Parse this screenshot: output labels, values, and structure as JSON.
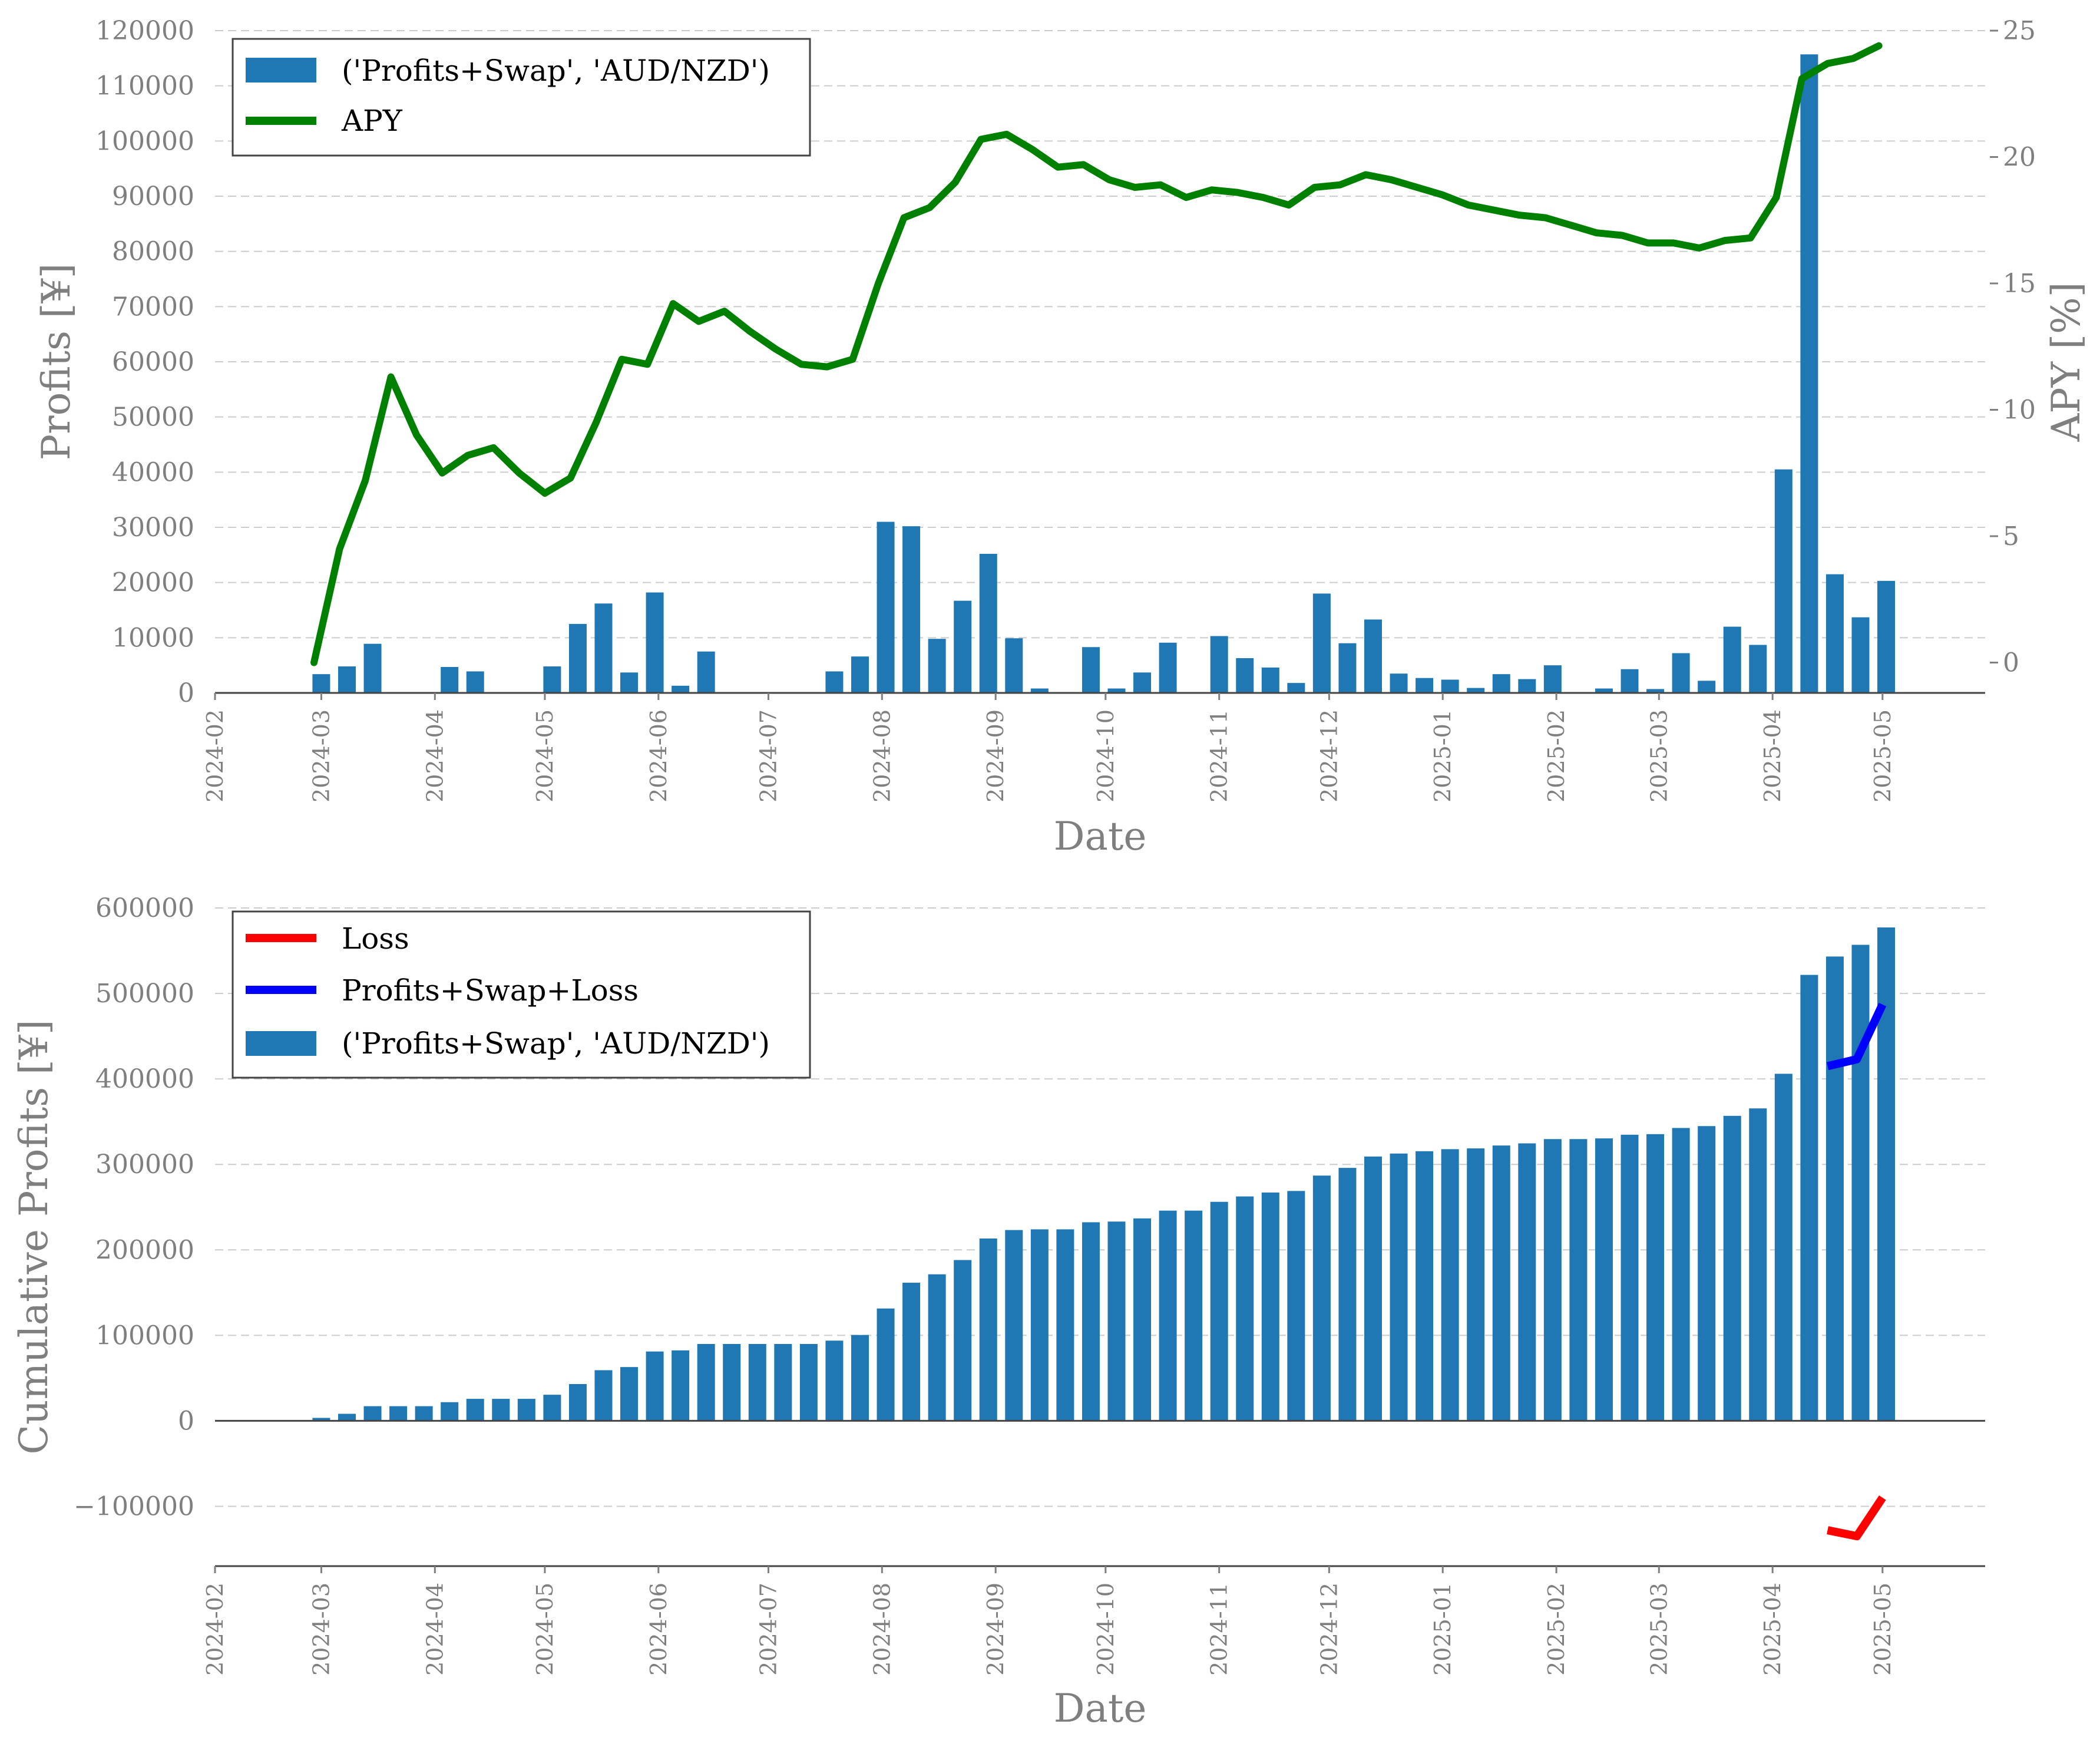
{
  "colors": {
    "bar": "#1f77b4",
    "apy": "#008000",
    "loss": "#ff0000",
    "psl": "#0000ff",
    "axis_text": "#7f7f7f"
  },
  "x_ticks": [
    "2024-02",
    "2024-03",
    "2024-04",
    "2024-05",
    "2024-06",
    "2024-07",
    "2024-08",
    "2024-09",
    "2024-10",
    "2024-11",
    "2024-12",
    "2025-01",
    "2025-02",
    "2025-03",
    "2025-04",
    "2025-05"
  ],
  "chart_data": [
    {
      "type": "bar",
      "xlabel": "Date",
      "ylabel": "Profits [¥]",
      "y2label": "APY [%]",
      "ylim": [
        0,
        120000
      ],
      "y2lim": [
        -1.2,
        25
      ],
      "yticks": [
        "0",
        "10000",
        "20000",
        "30000",
        "40000",
        "50000",
        "60000",
        "70000",
        "80000",
        "90000",
        "100000",
        "110000",
        "120000"
      ],
      "y2ticks": [
        "0",
        "5",
        "10",
        "15",
        "20",
        "25"
      ],
      "grid": true,
      "legend_position": "top-left",
      "legend": [
        "('Profits+Swap', 'AUD/NZD')",
        "APY"
      ],
      "series": [
        {
          "name": "('Profits+Swap', 'AUD/NZD')",
          "type": "bar",
          "x": [
            "2024-03-01",
            "2024-03-08",
            "2024-03-15",
            "2024-04-05",
            "2024-04-12",
            "2024-05-03",
            "2024-05-10",
            "2024-05-17",
            "2024-05-24",
            "2024-05-31",
            "2024-06-07",
            "2024-06-14",
            "2024-07-19",
            "2024-07-26",
            "2024-08-02",
            "2024-08-09",
            "2024-08-16",
            "2024-08-23",
            "2024-08-30",
            "2024-09-06",
            "2024-09-13",
            "2024-09-27",
            "2024-10-04",
            "2024-10-11",
            "2024-10-18",
            "2024-11-01",
            "2024-11-08",
            "2024-11-15",
            "2024-11-22",
            "2024-11-29",
            "2024-12-06",
            "2024-12-13",
            "2024-12-20",
            "2024-12-27",
            "2025-01-03",
            "2025-01-10",
            "2025-01-17",
            "2025-01-24",
            "2025-01-31",
            "2025-02-14",
            "2025-02-21",
            "2025-02-28",
            "2025-03-07",
            "2025-03-14",
            "2025-03-21",
            "2025-03-28",
            "2025-04-04",
            "2025-04-11",
            "2025-04-18",
            "2025-04-25",
            "2025-05-02"
          ],
          "values": [
            3400,
            4800,
            8900,
            4700,
            3900,
            4800,
            12500,
            16200,
            3700,
            18200,
            1300,
            7500,
            3900,
            6600,
            31000,
            30200,
            9800,
            16700,
            25200,
            9900,
            800,
            8300,
            800,
            3700,
            9100,
            10300,
            6300,
            4600,
            1800,
            18000,
            9000,
            13300,
            3500,
            2700,
            2400,
            900,
            3400,
            2500,
            5000,
            800,
            4300,
            700,
            7200,
            2200,
            12000,
            8700,
            40500,
            115700,
            21500,
            13700,
            20300
          ]
        },
        {
          "name": "APY",
          "type": "line",
          "axis": "right",
          "x": [
            "2024-02-28",
            "2024-03-06",
            "2024-03-13",
            "2024-03-20",
            "2024-03-27",
            "2024-04-03",
            "2024-04-10",
            "2024-04-17",
            "2024-04-24",
            "2024-05-01",
            "2024-05-08",
            "2024-05-15",
            "2024-05-22",
            "2024-05-29",
            "2024-06-05",
            "2024-06-12",
            "2024-06-19",
            "2024-06-26",
            "2024-07-03",
            "2024-07-10",
            "2024-07-17",
            "2024-07-24",
            "2024-07-31",
            "2024-08-07",
            "2024-08-14",
            "2024-08-21",
            "2024-08-28",
            "2024-09-04",
            "2024-09-11",
            "2024-09-18",
            "2024-09-25",
            "2024-10-02",
            "2024-10-09",
            "2024-10-16",
            "2024-10-23",
            "2024-10-30",
            "2024-11-06",
            "2024-11-13",
            "2024-11-20",
            "2024-11-27",
            "2024-12-04",
            "2024-12-11",
            "2024-12-18",
            "2024-12-25",
            "2025-01-01",
            "2025-01-08",
            "2025-01-15",
            "2025-01-22",
            "2025-01-29",
            "2025-02-05",
            "2025-02-12",
            "2025-02-19",
            "2025-02-26",
            "2025-03-05",
            "2025-03-12",
            "2025-03-19",
            "2025-03-26",
            "2025-04-02",
            "2025-04-09",
            "2025-04-16",
            "2025-04-23",
            "2025-04-30"
          ],
          "values": [
            0.0,
            4.5,
            7.2,
            11.3,
            9.0,
            7.5,
            8.2,
            8.5,
            7.5,
            6.7,
            7.3,
            9.5,
            12.0,
            11.8,
            14.2,
            13.5,
            13.9,
            13.1,
            12.4,
            11.8,
            11.7,
            12.0,
            15.0,
            17.6,
            18.0,
            19.0,
            20.7,
            20.9,
            20.3,
            19.6,
            19.7,
            19.1,
            18.8,
            18.9,
            18.4,
            18.7,
            18.6,
            18.4,
            18.1,
            18.8,
            18.9,
            19.3,
            19.1,
            18.8,
            18.5,
            18.1,
            17.9,
            17.7,
            17.6,
            17.3,
            17.0,
            16.9,
            16.6,
            16.6,
            16.4,
            16.7,
            16.8,
            18.4,
            23.1,
            23.7,
            23.9,
            24.4
          ]
        }
      ]
    },
    {
      "type": "bar",
      "xlabel": "Date",
      "ylabel": "Cumulative Profits [¥]",
      "ylim": [
        -170000,
        600000
      ],
      "yticks": [
        "−100000",
        "0",
        "100000",
        "200000",
        "300000",
        "400000",
        "500000",
        "600000"
      ],
      "grid": true,
      "legend_position": "top-left",
      "legend": [
        "Loss",
        "Profits+Swap+Loss",
        "('Profits+Swap', 'AUD/NZD')"
      ],
      "series": [
        {
          "name": "('Profits+Swap', 'AUD/NZD')",
          "type": "bar",
          "x": [
            "2024-03-01",
            "2024-03-08",
            "2024-03-15",
            "2024-03-22",
            "2024-03-29",
            "2024-04-05",
            "2024-04-12",
            "2024-04-19",
            "2024-04-26",
            "2024-05-03",
            "2024-05-10",
            "2024-05-17",
            "2024-05-24",
            "2024-05-31",
            "2024-06-07",
            "2024-06-14",
            "2024-06-21",
            "2024-06-28",
            "2024-07-05",
            "2024-07-12",
            "2024-07-19",
            "2024-07-26",
            "2024-08-02",
            "2024-08-09",
            "2024-08-16",
            "2024-08-23",
            "2024-08-30",
            "2024-09-06",
            "2024-09-13",
            "2024-09-20",
            "2024-09-27",
            "2024-10-04",
            "2024-10-11",
            "2024-10-18",
            "2024-10-25",
            "2024-11-01",
            "2024-11-08",
            "2024-11-15",
            "2024-11-22",
            "2024-11-29",
            "2024-12-06",
            "2024-12-13",
            "2024-12-20",
            "2024-12-27",
            "2025-01-03",
            "2025-01-10",
            "2025-01-17",
            "2025-01-24",
            "2025-01-31",
            "2025-02-07",
            "2025-02-14",
            "2025-02-21",
            "2025-02-28",
            "2025-03-07",
            "2025-03-14",
            "2025-03-21",
            "2025-03-28",
            "2025-04-04",
            "2025-04-11",
            "2025-04-18",
            "2025-04-25",
            "2025-05-02"
          ],
          "values": [
            3400,
            8200,
            17100,
            17100,
            17100,
            21800,
            25700,
            25700,
            25700,
            30500,
            43000,
            59200,
            62900,
            81100,
            82400,
            89900,
            89900,
            89900,
            89900,
            89900,
            93800,
            100400,
            131400,
            161600,
            171400,
            188100,
            213300,
            223200,
            224000,
            224000,
            232300,
            233100,
            236800,
            245900,
            245900,
            256200,
            262500,
            267100,
            268900,
            286900,
            295900,
            309200,
            312700,
            315400,
            317800,
            318700,
            322100,
            324600,
            329600,
            329600,
            330400,
            334700,
            335400,
            342600,
            344800,
            356800,
            365500,
            406000,
            521700,
            543200,
            556900,
            577200
          ]
        },
        {
          "name": "Profits+Swap+Loss",
          "type": "line",
          "x": [
            "2025-04-16",
            "2025-04-24",
            "2025-05-01"
          ],
          "values": [
            415000,
            423000,
            487000
          ]
        },
        {
          "name": "Loss",
          "type": "line",
          "x": [
            "2025-04-16",
            "2025-04-24",
            "2025-05-01"
          ],
          "values": [
            -128000,
            -135000,
            -90000
          ]
        }
      ]
    }
  ]
}
